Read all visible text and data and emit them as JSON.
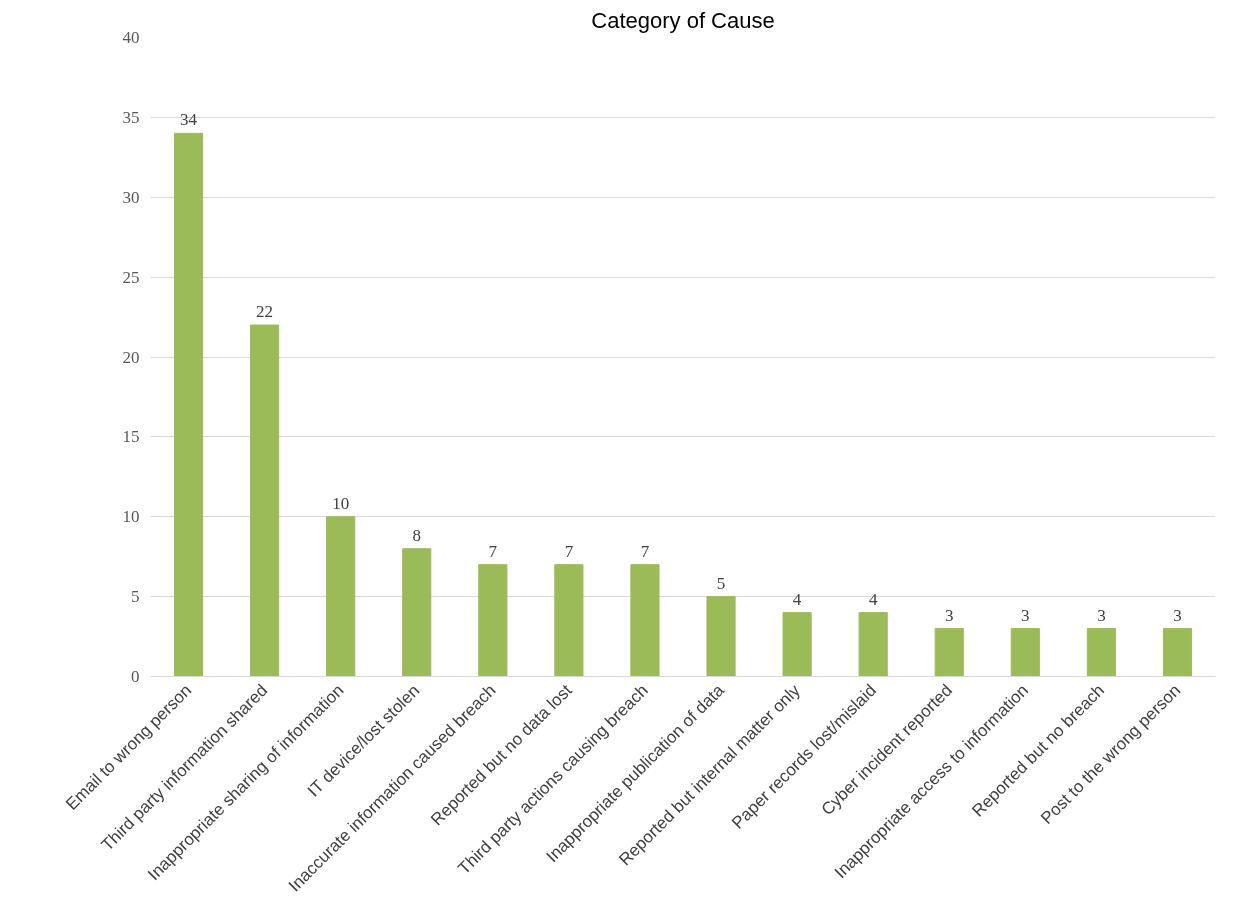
{
  "chart_data": {
    "type": "bar",
    "title": "Category of Cause",
    "categories": [
      "Email to wrong person",
      "Third party information shared",
      "Inappropriate sharing of information",
      "IT device/lost stolen",
      "Inaccurate information caused breach",
      "Reported but no data lost",
      "Third party actions causing breach",
      "Inappropriate publication of data",
      "Reported but internal matter only",
      "Paper records lost/mislaid",
      "Cyber incident reported",
      "Inappropriate access to information",
      "Reported but no breach",
      "Post to the wrong person"
    ],
    "values": [
      34,
      22,
      10,
      8,
      7,
      7,
      7,
      5,
      4,
      4,
      3,
      3,
      3,
      3
    ],
    "color": "#9bbb59",
    "ylim": [
      0,
      40
    ],
    "yticks": [
      0,
      5,
      10,
      15,
      20,
      25,
      30,
      35,
      40
    ],
    "grid": "y",
    "data_labels": true
  }
}
